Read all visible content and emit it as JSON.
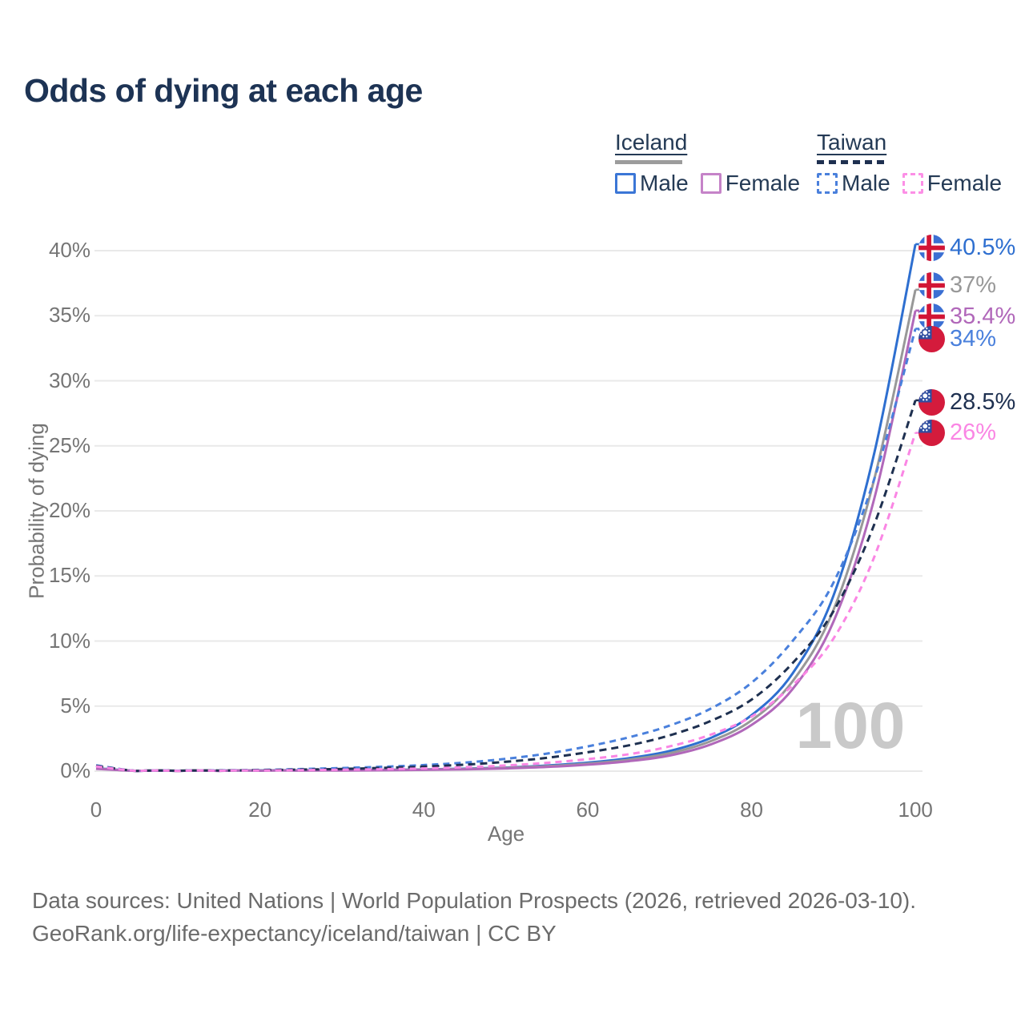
{
  "title": "Odds of dying at each age",
  "legend": {
    "groups": [
      {
        "name": "Iceland",
        "line_style": "solid",
        "sample_color": "#9c9c9c",
        "items": [
          {
            "label": "Male",
            "color": "#3b76d6",
            "dashed": false
          },
          {
            "label": "Female",
            "color": "#c583c8",
            "dashed": false
          }
        ]
      },
      {
        "name": "Taiwan",
        "line_style": "dashed",
        "sample_color": "#1e3050",
        "items": [
          {
            "label": "Male",
            "color": "#4a80dc",
            "dashed": true
          },
          {
            "label": "Female",
            "color": "#fc8fe6",
            "dashed": true
          }
        ]
      }
    ]
  },
  "chart_data": {
    "type": "line",
    "title": "Odds of dying at each age",
    "xlabel": "Age",
    "ylabel": "Probability of dying",
    "xlim": [
      0,
      100
    ],
    "ylim": [
      0,
      42
    ],
    "x_ticks": [
      0,
      20,
      40,
      60,
      80,
      100
    ],
    "y_ticks_percent": [
      0,
      5,
      10,
      15,
      20,
      25,
      30,
      35,
      40
    ],
    "grid": "horizontal",
    "watermark": "100",
    "x_ages": [
      0,
      5,
      10,
      15,
      20,
      25,
      30,
      35,
      40,
      45,
      50,
      55,
      60,
      65,
      70,
      75,
      80,
      85,
      90,
      95,
      100
    ],
    "series": [
      {
        "id": "iceland-male",
        "name": "Iceland Male",
        "country": "Iceland",
        "group": "Male",
        "color": "#2e6fd0",
        "dash": "solid",
        "flag": "iceland",
        "end_label": "40.5%",
        "values_percent": [
          0.22,
          0.01,
          0.01,
          0.03,
          0.06,
          0.07,
          0.08,
          0.1,
          0.13,
          0.19,
          0.28,
          0.43,
          0.65,
          1.0,
          1.55,
          2.55,
          4.3,
          7.5,
          13.5,
          24.5,
          40.5
        ]
      },
      {
        "id": "iceland-all",
        "name": "Iceland (all)",
        "country": "Iceland",
        "group": "All",
        "color": "#989898",
        "dash": "solid",
        "flag": "iceland",
        "end_label": "37%",
        "values_percent": [
          0.2,
          0.01,
          0.01,
          0.025,
          0.05,
          0.06,
          0.07,
          0.09,
          0.12,
          0.17,
          0.25,
          0.38,
          0.58,
          0.88,
          1.38,
          2.3,
          3.9,
          6.9,
          12.4,
          22.5,
          37.0
        ]
      },
      {
        "id": "iceland-female",
        "name": "Iceland Female",
        "country": "Iceland",
        "group": "Female",
        "color": "#b168ba",
        "dash": "solid",
        "flag": "iceland",
        "end_label": "35.4%",
        "values_percent": [
          0.18,
          0.01,
          0.01,
          0.02,
          0.03,
          0.04,
          0.05,
          0.07,
          0.1,
          0.14,
          0.21,
          0.32,
          0.5,
          0.76,
          1.2,
          2.05,
          3.55,
          6.3,
          11.5,
          21.0,
          35.4
        ]
      },
      {
        "id": "taiwan-male",
        "name": "Taiwan Male",
        "country": "Taiwan",
        "group": "Male",
        "color": "#4a80dc",
        "dash": "8 6",
        "flag": "taiwan",
        "end_label": "34%",
        "values_percent": [
          0.45,
          0.02,
          0.03,
          0.06,
          0.1,
          0.16,
          0.24,
          0.34,
          0.47,
          0.66,
          0.95,
          1.35,
          1.9,
          2.6,
          3.5,
          4.8,
          6.8,
          10.0,
          14.5,
          22.5,
          34.0
        ]
      },
      {
        "id": "taiwan-all",
        "name": "Taiwan (all)",
        "country": "Taiwan",
        "group": "All",
        "color": "#1e3050",
        "dash": "9 6",
        "flag": "taiwan",
        "end_label": "28.5%",
        "values_percent": [
          0.4,
          0.02,
          0.03,
          0.05,
          0.08,
          0.12,
          0.17,
          0.25,
          0.35,
          0.5,
          0.72,
          1.02,
          1.45,
          1.98,
          2.75,
          3.85,
          5.5,
          8.3,
          12.3,
          19.0,
          28.5
        ]
      },
      {
        "id": "taiwan-female",
        "name": "Taiwan Female",
        "country": "Taiwan",
        "group": "Female",
        "color": "#fa86e4",
        "dash": "8 6",
        "flag": "taiwan",
        "end_label": "26%",
        "values_percent": [
          0.36,
          0.02,
          0.02,
          0.03,
          0.05,
          0.08,
          0.11,
          0.15,
          0.21,
          0.3,
          0.44,
          0.64,
          0.92,
          1.3,
          1.9,
          2.8,
          4.2,
          6.6,
          10.2,
          16.5,
          26.0
        ]
      }
    ]
  },
  "footer": {
    "line1": "Data sources: United Nations | World Population Prospects (2026, retrieved 2026-03-10).",
    "line2": "GeoRank.org/life-expectancy/iceland/taiwan | CC BY"
  }
}
